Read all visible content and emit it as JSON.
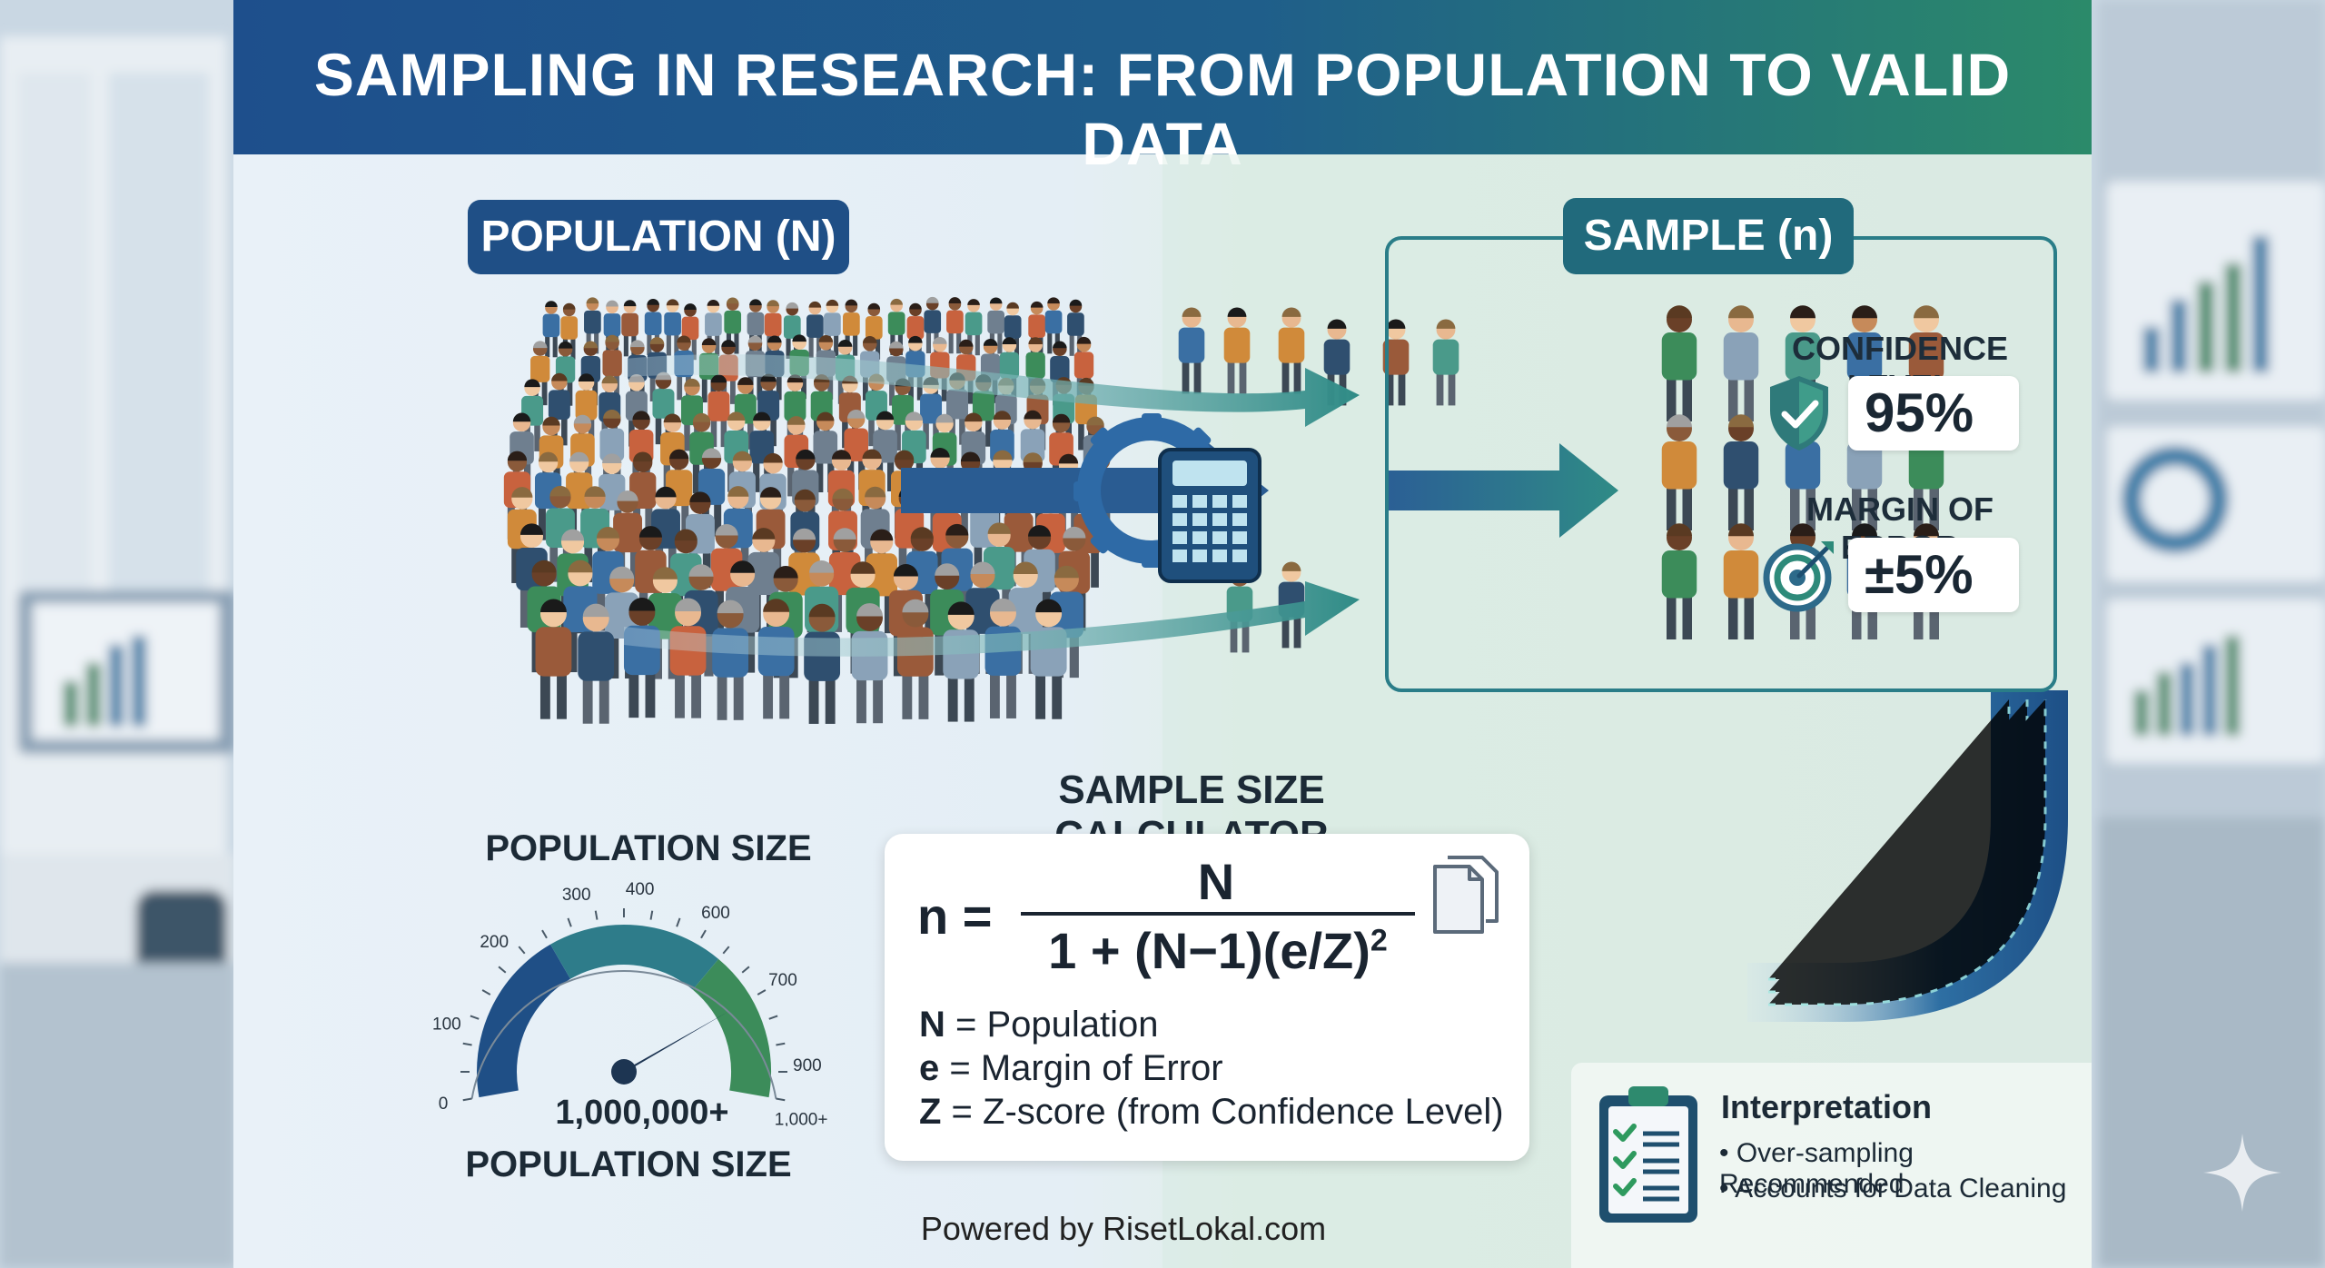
{
  "title": "SAMPLING IN RESEARCH: FROM POPULATION TO VALID DATA",
  "population": {
    "label": "POPULATION (N)"
  },
  "sample": {
    "label": "SAMPLE (n)",
    "confidence_title": "CONFIDENCE LEVEL",
    "confidence_value": "95%",
    "margin_title": "MARGIN OF ERROR",
    "margin_value": "±5%"
  },
  "calculator": {
    "title": "SAMPLE SIZE CALCULATOR",
    "lhs": "n =",
    "numerator": "N",
    "denominator": "1 + (N−1)(e/Z)",
    "exponent": "2",
    "legend": [
      {
        "sym": "N",
        "text": " = Population"
      },
      {
        "sym": "e",
        "text": " = Margin of Error"
      },
      {
        "sym": "Z",
        "text": " = Z-score (from Confidence Level)"
      }
    ]
  },
  "gauge": {
    "title_top": "POPULATION SIZE",
    "title_bottom": "POPULATION SIZE",
    "value": "1,000,000+",
    "ticks": [
      "0",
      "100",
      "200",
      "300",
      "400",
      "600",
      "700",
      "900",
      "1,000+"
    ]
  },
  "interpretation": {
    "title": "Interpretation",
    "items": [
      "• Over-sampling Recommended",
      "• Accounts for Data Cleaning"
    ]
  },
  "footer": "Powered by RisetLokal.com",
  "colors": {
    "header_start": "#1e4f8c",
    "header_end": "#2b8a6a",
    "teal": "#216a7c",
    "navy": "#1f4f86",
    "green": "#3c8c5a"
  }
}
